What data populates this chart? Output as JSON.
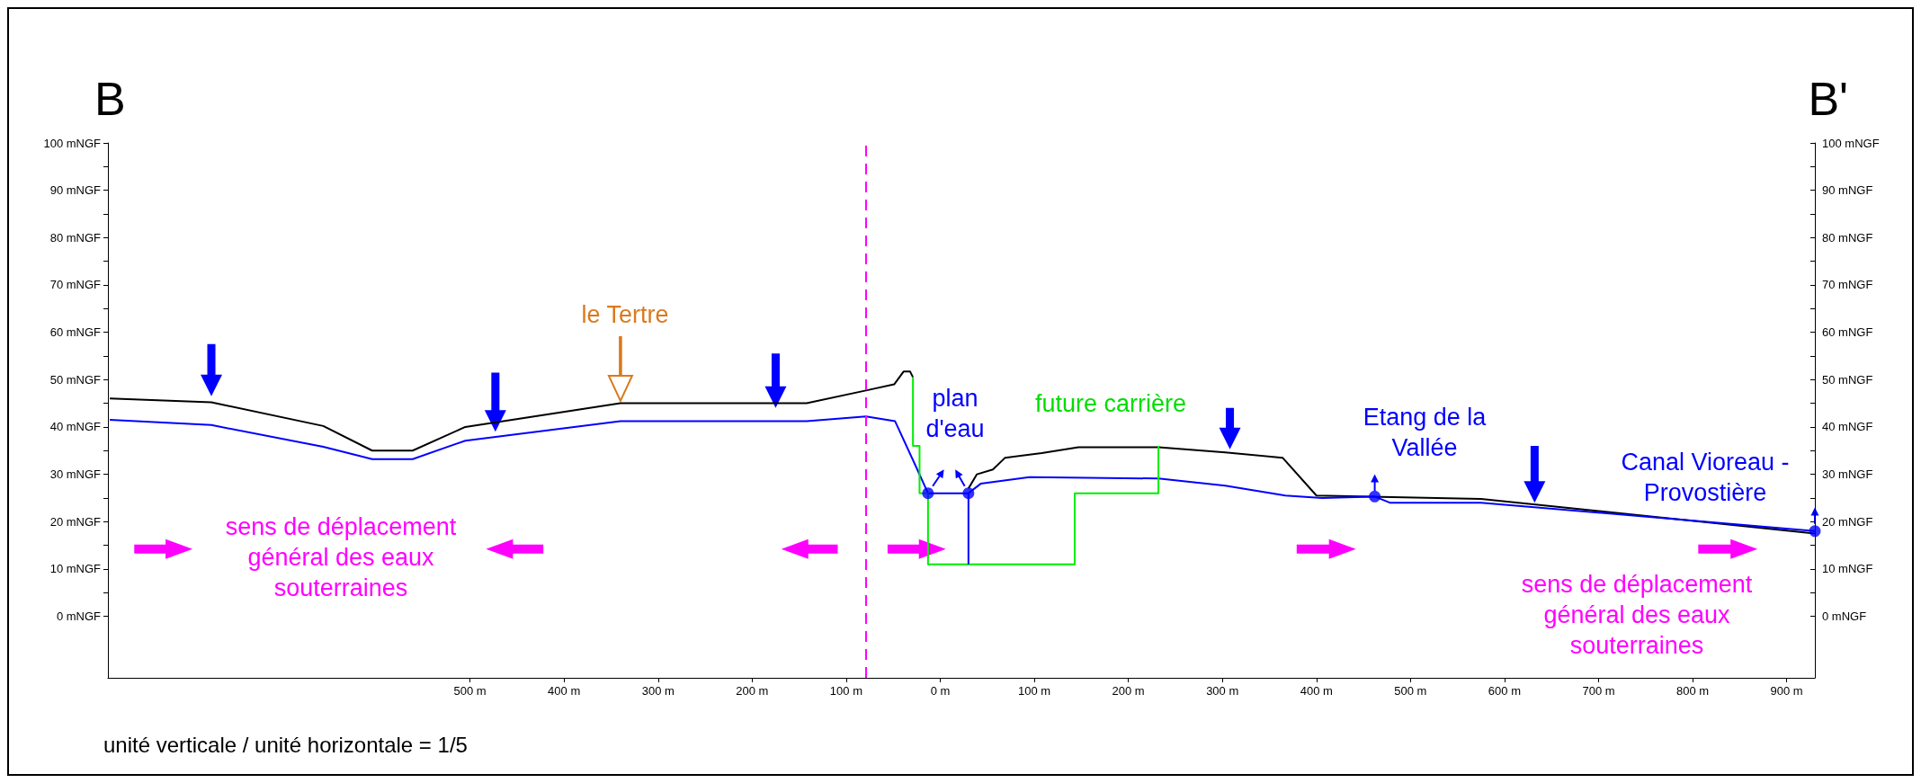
{
  "chart_data": {
    "type": "line",
    "annotations": [
      "B",
      "B'",
      "unité verticale / unité horizontale = 1/5",
      "le Tertre",
      "plan d'eau",
      "future carrière",
      "Etang de la Vallée",
      "Canal Vioreau - Provostière",
      "sens de déplacement général des eaux souterraines",
      "sens de déplacement général des eaux souterraines"
    ],
    "series": [
      {
        "color": "#000000",
        "x": [
          -883,
          -775,
          -656,
          -604,
          -561,
          -505,
          -340,
          -142,
          -79,
          -49,
          -39,
          -32,
          -29,
          0,
          30,
          39,
          56,
          69,
          108,
          147,
          232,
          303,
          364,
          400,
          575,
          930
        ],
        "values": [
          46,
          45.2,
          40.2,
          35,
          35,
          40,
          45,
          45,
          47.7,
          49,
          51.7,
          51.7,
          50.5,
          null,
          27,
          30,
          31,
          33.5,
          34.5,
          35.7,
          35.7,
          34.6,
          33.5,
          25.5,
          24.8,
          17.5
        ]
      },
      {
        "color": "#0000ff",
        "x": [
          -883,
          -775,
          -656,
          -604,
          -561,
          -505,
          -340,
          -142,
          -79,
          -48,
          -29,
          -13,
          30,
          43,
          95,
          232,
          303,
          367,
          406,
          462,
          478,
          575,
          930
        ],
        "values": [
          41.5,
          40.4,
          35.8,
          33.2,
          33.2,
          37.1,
          41.2,
          41.2,
          42.2,
          41.2,
          33,
          26,
          26,
          28,
          29.4,
          29.1,
          27.6,
          25.5,
          25,
          25.3,
          24,
          24,
          18
        ]
      },
      {
        "color": "#00ee00",
        "type": "step",
        "x": [
          -29,
          -29,
          -22,
          -22,
          -13,
          -13,
          143,
          143,
          232,
          232
        ],
        "values": [
          50.5,
          36,
          36,
          26,
          26,
          11,
          11,
          26,
          26,
          36
        ]
      },
      {
        "color": "#0000ff",
        "x": [
          30,
          30
        ],
        "values": [
          26,
          11
        ]
      },
      {
        "color": "#0000ff",
        "type": "scatter",
        "marker": "circle",
        "x": [
          -13,
          30,
          462,
          930
        ],
        "values": [
          26,
          26,
          25.3,
          18
        ]
      }
    ],
    "xlim": [
      -885,
      930
    ],
    "xticks": [
      {
        "value": -500,
        "label": "500 m"
      },
      {
        "value": -400,
        "label": "400 m"
      },
      {
        "value": -300,
        "label": "300 m"
      },
      {
        "value": -200,
        "label": "200 m"
      },
      {
        "value": -100,
        "label": "100 m"
      },
      {
        "value": 0,
        "label": "0 m"
      },
      {
        "value": 100,
        "label": "100 m"
      },
      {
        "value": 200,
        "label": "200 m"
      },
      {
        "value": 300,
        "label": "300 m"
      },
      {
        "value": 400,
        "label": "400 m"
      },
      {
        "value": 500,
        "label": "500 m"
      },
      {
        "value": 600,
        "label": "600 m"
      },
      {
        "value": 700,
        "label": "700 m"
      },
      {
        "value": 800,
        "label": "800 m"
      },
      {
        "value": 900,
        "label": "900 m"
      }
    ],
    "ylim": [
      -13,
      100
    ],
    "yticks": [
      {
        "value": 0,
        "label": "0 mNGF"
      },
      {
        "value": 5,
        "label": null
      },
      {
        "value": 10,
        "label": "10 mNGF"
      },
      {
        "value": 15,
        "label": null
      },
      {
        "value": 20,
        "label": "20 mNGF"
      },
      {
        "value": 25,
        "label": null
      },
      {
        "value": 30,
        "label": "30 mNGF"
      },
      {
        "value": 35,
        "label": null
      },
      {
        "value": 40,
        "label": "40 mNGF"
      },
      {
        "value": 45,
        "label": null
      },
      {
        "value": 50,
        "label": "50 mNGF"
      },
      {
        "value": 55,
        "label": null
      },
      {
        "value": 60,
        "label": "60 mNGF"
      },
      {
        "value": 65,
        "label": null
      },
      {
        "value": 70,
        "label": "70 mNGF"
      },
      {
        "value": 75,
        "label": null
      },
      {
        "value": 80,
        "label": "80 mNGF"
      },
      {
        "value": 85,
        "label": null
      },
      {
        "value": 90,
        "label": "90 mNGF"
      },
      {
        "value": 95,
        "label": null
      },
      {
        "value": 100,
        "label": "100 mNGF"
      }
    ],
    "y2lim": [
      -13,
      100
    ],
    "y2ticks": [
      {
        "value": 0,
        "label": "0 mNGF"
      },
      {
        "value": 5,
        "label": null
      },
      {
        "value": 10,
        "label": "10 mNGF"
      },
      {
        "value": 15,
        "label": null
      },
      {
        "value": 20,
        "label": "20 mNGF"
      },
      {
        "value": 25,
        "label": null
      },
      {
        "value": 30,
        "label": "30 mNGF"
      },
      {
        "value": 35,
        "label": null
      },
      {
        "value": 40,
        "label": "40 mNGF"
      },
      {
        "value": 45,
        "label": null
      },
      {
        "value": 50,
        "label": "50 mNGF"
      },
      {
        "value": 55,
        "label": null
      },
      {
        "value": 60,
        "label": "60 mNGF"
      },
      {
        "value": 65,
        "label": null
      },
      {
        "value": 70,
        "label": "70 mNGF"
      },
      {
        "value": 75,
        "label": null
      },
      {
        "value": 80,
        "label": "80 mNGF"
      },
      {
        "value": 85,
        "label": null
      },
      {
        "value": 90,
        "label": "90 mNGF"
      },
      {
        "value": 95,
        "label": null
      },
      {
        "value": 100,
        "label": "100 mNGF"
      }
    ],
    "ref_lines": [
      {
        "axis": "x",
        "value": -79,
        "color": "#ff00ff",
        "line_style": "dashed"
      }
    ],
    "marker": "none",
    "line_style": "solid",
    "grid": false
  }
}
